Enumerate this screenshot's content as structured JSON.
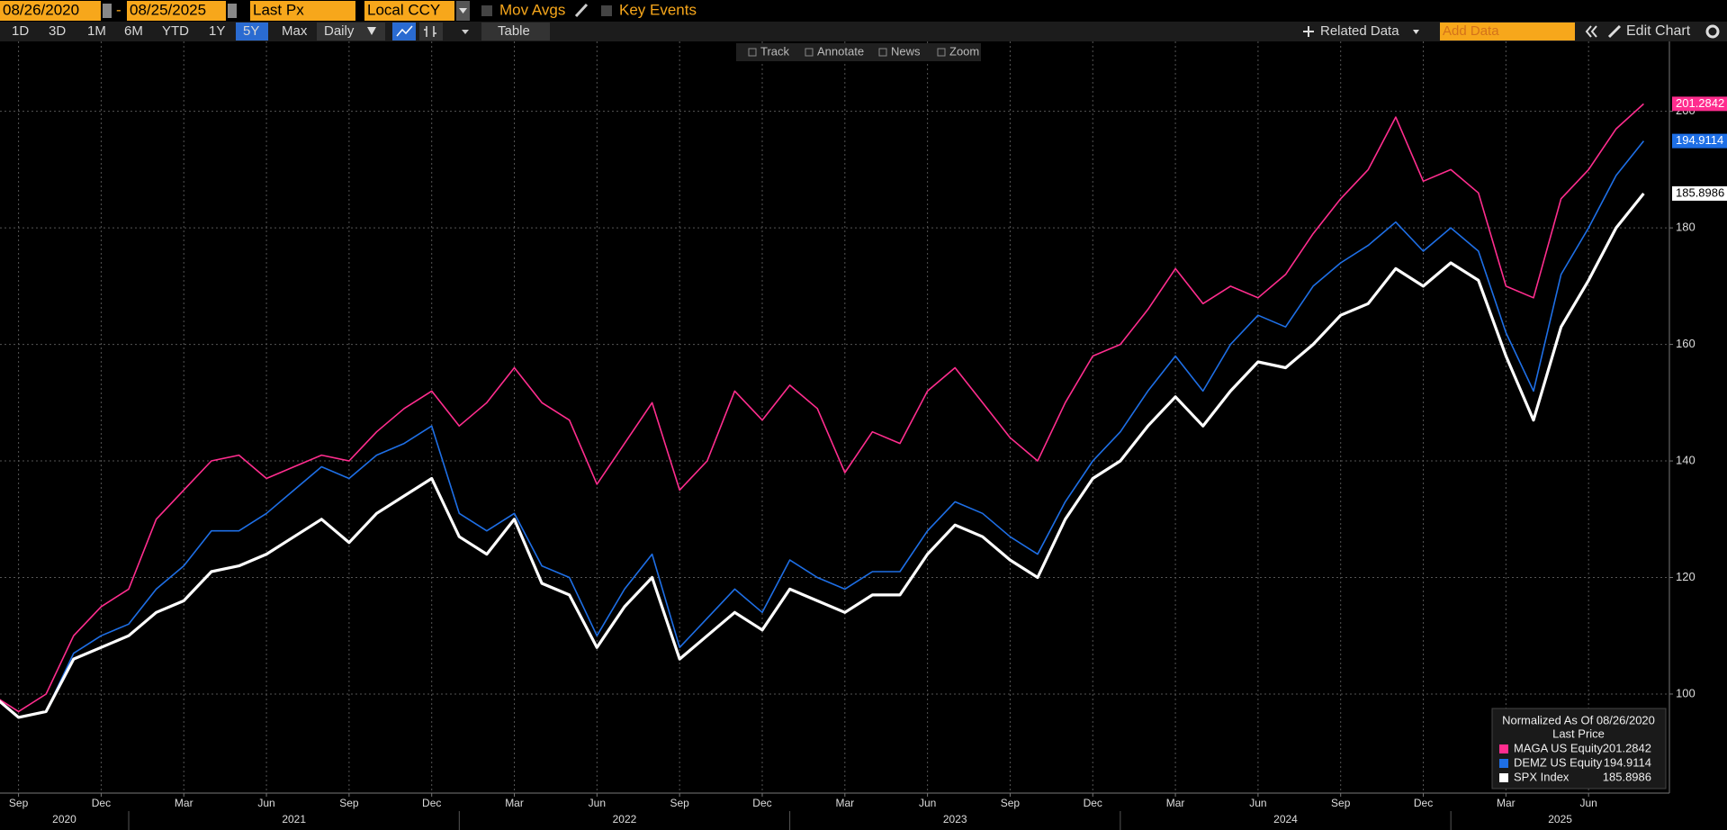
{
  "toolbar": {
    "start_date": "08/26/2020",
    "end_date": "08/25/2025",
    "separator": "-",
    "field": "Last Px",
    "currency": "Local CCY",
    "mov_avgs": "Mov Avgs",
    "key_events": "Key Events",
    "ranges": [
      "1D",
      "3D",
      "1M",
      "6M",
      "YTD",
      "1Y",
      "5Y",
      "Max"
    ],
    "active_range_index": 6,
    "frequency": "Daily",
    "table": "Table",
    "related_data": "Related Data",
    "add_data": "Add Data",
    "edit_chart": "Edit Chart"
  },
  "plot_toolbar": [
    "Track",
    "Annotate",
    "News",
    "Zoom"
  ],
  "chart_data": {
    "type": "line",
    "x": [
      "2020-08",
      "2020-09",
      "2020-10",
      "2020-11",
      "2020-12",
      "2021-01",
      "2021-02",
      "2021-03",
      "2021-04",
      "2021-05",
      "2021-06",
      "2021-07",
      "2021-08",
      "2021-09",
      "2021-10",
      "2021-11",
      "2021-12",
      "2022-01",
      "2022-02",
      "2022-03",
      "2022-04",
      "2022-05",
      "2022-06",
      "2022-07",
      "2022-08",
      "2022-09",
      "2022-10",
      "2022-11",
      "2022-12",
      "2023-01",
      "2023-02",
      "2023-03",
      "2023-04",
      "2023-05",
      "2023-06",
      "2023-07",
      "2023-08",
      "2023-09",
      "2023-10",
      "2023-11",
      "2023-12",
      "2024-01",
      "2024-02",
      "2024-03",
      "2024-04",
      "2024-05",
      "2024-06",
      "2024-07",
      "2024-08",
      "2024-09",
      "2024-10",
      "2024-11",
      "2024-12",
      "2025-01",
      "2025-02",
      "2025-03",
      "2025-04",
      "2025-05",
      "2025-06",
      "2025-07",
      "2025-08"
    ],
    "series": [
      {
        "name": "MAGA US Equity",
        "color": "#ff2d8e",
        "width": 1.6,
        "values": [
          100,
          97,
          100,
          110,
          115,
          118,
          130,
          135,
          140,
          141,
          137,
          139,
          141,
          140,
          145,
          149,
          152,
          146,
          150,
          156,
          150,
          147,
          136,
          143,
          150,
          135,
          140,
          152,
          147,
          153,
          149,
          138,
          145,
          143,
          152,
          156,
          150,
          144,
          140,
          150,
          158,
          160,
          166,
          173,
          167,
          170,
          168,
          172,
          179,
          185,
          190,
          199,
          188,
          190,
          186,
          170,
          168,
          185,
          190,
          197,
          201.2842
        ]
      },
      {
        "name": "DEMZ US Equity",
        "color": "#1e6fe6",
        "width": 1.6,
        "values": [
          100,
          96,
          97,
          107,
          110,
          112,
          118,
          122,
          128,
          128,
          131,
          135,
          139,
          137,
          141,
          143,
          146,
          131,
          128,
          131,
          122,
          120,
          110,
          118,
          124,
          108,
          113,
          118,
          114,
          123,
          120,
          118,
          121,
          121,
          128,
          133,
          131,
          127,
          124,
          133,
          140,
          145,
          152,
          158,
          152,
          160,
          165,
          163,
          170,
          174,
          177,
          181,
          176,
          180,
          176,
          162,
          152,
          172,
          180,
          189,
          194.9114
        ]
      },
      {
        "name": "SPX Index",
        "color": "#ffffff",
        "width": 3.2,
        "values": [
          100,
          96,
          97,
          106,
          108,
          110,
          114,
          116,
          121,
          122,
          124,
          127,
          130,
          126,
          131,
          134,
          137,
          127,
          124,
          130,
          119,
          117,
          108,
          115,
          120,
          106,
          110,
          114,
          111,
          118,
          116,
          114,
          117,
          117,
          124,
          129,
          127,
          123,
          120,
          130,
          137,
          140,
          146,
          151,
          146,
          152,
          157,
          156,
          160,
          165,
          167,
          173,
          170,
          174,
          171,
          158,
          147,
          163,
          171,
          180,
          185.8986
        ]
      }
    ],
    "xlim": [
      "2020-08",
      "2025-09"
    ],
    "xticks": [
      {
        "value": "2020-09",
        "label": "Sep"
      },
      {
        "value": "2020-12",
        "label": "Dec"
      },
      {
        "value": "2021-03",
        "label": "Mar"
      },
      {
        "value": "2021-06",
        "label": "Jun"
      },
      {
        "value": "2021-09",
        "label": "Sep"
      },
      {
        "value": "2021-12",
        "label": "Dec"
      },
      {
        "value": "2022-03",
        "label": "Mar"
      },
      {
        "value": "2022-06",
        "label": "Jun"
      },
      {
        "value": "2022-09",
        "label": "Sep"
      },
      {
        "value": "2022-12",
        "label": "Dec"
      },
      {
        "value": "2023-03",
        "label": "Mar"
      },
      {
        "value": "2023-06",
        "label": "Jun"
      },
      {
        "value": "2023-09",
        "label": "Sep"
      },
      {
        "value": "2023-12",
        "label": "Dec"
      },
      {
        "value": "2024-03",
        "label": "Mar"
      },
      {
        "value": "2024-06",
        "label": "Jun"
      },
      {
        "value": "2024-09",
        "label": "Sep"
      },
      {
        "value": "2024-12",
        "label": "Dec"
      },
      {
        "value": "2025-03",
        "label": "Mar"
      },
      {
        "value": "2025-06",
        "label": "Jun"
      }
    ],
    "year_labels": [
      "2020",
      "2021",
      "2022",
      "2023",
      "2024",
      "2025"
    ],
    "ylim": [
      83,
      212
    ],
    "yticks": [
      100,
      120,
      140,
      160,
      180,
      200
    ],
    "grid": true,
    "legend_title": "Normalized As Of 08/26/2020",
    "legend_subtitle": "Last Price",
    "legend_position": "lower right"
  }
}
